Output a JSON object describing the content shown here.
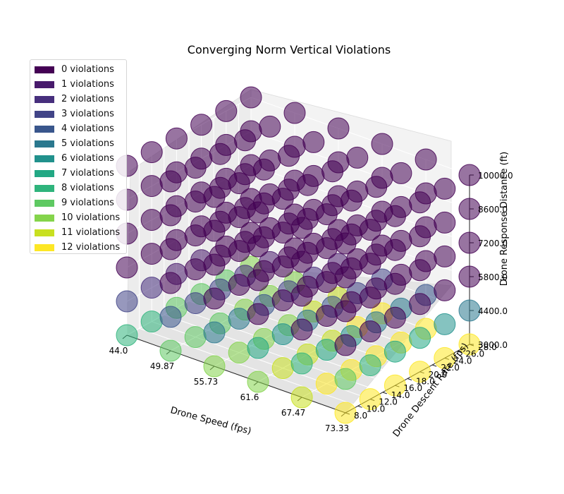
{
  "chart_data": {
    "type": "scatter",
    "title": "Converging Norm Vertical Violations",
    "xlabel": "Drone Speed (fps)",
    "ylabel": "Drone Descent Rate (fps)",
    "zlabel": "Drone Response Distance (ft)",
    "xlim": [
      44.0,
      73.33
    ],
    "ylim": [
      8.0,
      28.0
    ],
    "zlim": [
      3000.0,
      10000.0
    ],
    "x_ticks": [
      "44.0",
      "49.87",
      "55.73",
      "61.6",
      "67.47",
      "73.33"
    ],
    "y_ticks": [
      "8.0",
      "10.0",
      "12.0",
      "14.0",
      "16.0",
      "18.0",
      "20.0",
      "22.0",
      "24.0",
      "26.0",
      "28.0"
    ],
    "z_ticks": [
      "3000.0",
      "4400.0",
      "5800.0",
      "7200.0",
      "8600.0",
      "10000.0"
    ],
    "grid": true,
    "legend_position": "upper-left",
    "legend": [
      {
        "label": "0 violations",
        "color": "#440154"
      },
      {
        "label": "1 violations",
        "color": "#481a6c"
      },
      {
        "label": "2 violations",
        "color": "#472f7d"
      },
      {
        "label": "3 violations",
        "color": "#414487"
      },
      {
        "label": "4 violations",
        "color": "#39568c"
      },
      {
        "label": "5 violations",
        "color": "#2a788e"
      },
      {
        "label": "6 violations",
        "color": "#21918c"
      },
      {
        "label": "7 violations",
        "color": "#22a884"
      },
      {
        "label": "8 violations",
        "color": "#2fb47c"
      },
      {
        "label": "9 violations",
        "color": "#5ec962"
      },
      {
        "label": "10 violations",
        "color": "#84d44b"
      },
      {
        "label": "11 violations",
        "color": "#c8e020"
      },
      {
        "label": "12 violations",
        "color": "#fde725"
      }
    ],
    "grid_points": {
      "x": [
        44.0,
        49.87,
        55.73,
        61.6,
        67.47,
        73.33
      ],
      "y": [
        8.0,
        12.0,
        16.0,
        20.0,
        24.0,
        28.0
      ],
      "z": [
        3000.0,
        4400.0,
        5800.0,
        7200.0,
        8600.0,
        10000.0
      ]
    }
  }
}
